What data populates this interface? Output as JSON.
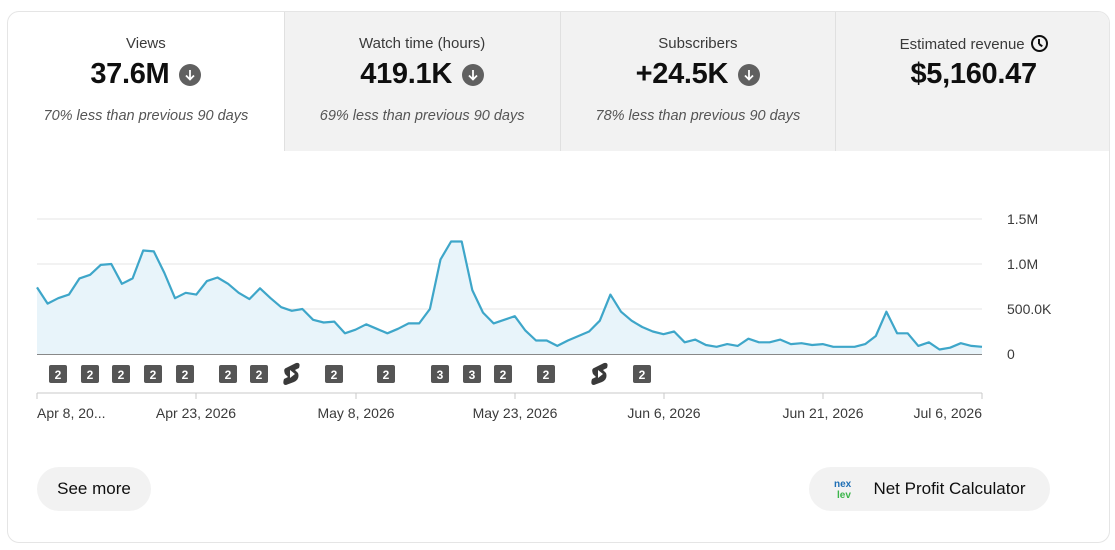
{
  "metrics": [
    {
      "label": "Views",
      "value": "37.6M",
      "comparison": "70% less than previous 90 days",
      "trend_icon": "arrow-down-circle-icon"
    },
    {
      "label": "Watch time (hours)",
      "value": "419.1K",
      "comparison": "69% less than previous 90 days",
      "trend_icon": "arrow-down-circle-icon"
    },
    {
      "label": "Subscribers",
      "value": "+24.5K",
      "comparison": "78% less than previous 90 days",
      "trend_icon": "arrow-down-circle-icon"
    },
    {
      "label": "Estimated revenue",
      "value": "$5,160.47",
      "label_icon": "clock-icon"
    }
  ],
  "chart_data": {
    "type": "area",
    "series": [
      {
        "values": [
          740000,
          560000,
          620000,
          660000,
          840000,
          880000,
          990000,
          1000000,
          780000,
          840000,
          1150000,
          1140000,
          900000,
          620000,
          680000,
          660000,
          810000,
          850000,
          780000,
          680000,
          610000,
          730000,
          620000,
          520000,
          480000,
          500000,
          380000,
          350000,
          360000,
          230000,
          270000,
          330000,
          280000,
          230000,
          280000,
          340000,
          340000,
          500000,
          1050000,
          1250000,
          1250000,
          710000,
          460000,
          340000,
          380000,
          420000,
          260000,
          150000,
          150000,
          90000,
          150000,
          200000,
          250000,
          370000,
          660000,
          470000,
          370000,
          300000,
          250000,
          220000,
          250000,
          130000,
          160000,
          100000,
          80000,
          110000,
          90000,
          170000,
          130000,
          130000,
          160000,
          110000,
          120000,
          100000,
          110000,
          80000,
          80000,
          80000,
          110000,
          200000,
          470000,
          230000,
          230000,
          90000,
          130000,
          50000,
          70000,
          120000,
          90000,
          80000
        ]
      }
    ],
    "x_tick_labels": [
      "Apr 8, 20...",
      "Apr 23, 2026",
      "May 8, 2026",
      "May 23, 2026",
      "Jun 6, 2026",
      "Jun 21, 2026",
      "Jul 6, 2026"
    ],
    "y_tick_labels": [
      "1.5M",
      "1.0M",
      "500.0K",
      "0"
    ],
    "y_ticks": [
      1500000,
      1000000,
      500000,
      0
    ],
    "ylim": [
      0,
      1500000
    ],
    "color": "#3ea6c9",
    "fill_color": "#e8f4fa",
    "markers": [
      {
        "text": "2"
      },
      {
        "text": "2"
      },
      {
        "text": "2"
      },
      {
        "text": "2"
      },
      {
        "text": "2"
      },
      {
        "text": "2"
      },
      {
        "text": "2"
      },
      {
        "icon": "shorts-icon"
      },
      {
        "text": "2"
      },
      {
        "text": "2"
      },
      {
        "text": "3"
      },
      {
        "text": "3"
      },
      {
        "text": "2"
      },
      {
        "text": "2"
      },
      {
        "icon": "shorts-icon"
      },
      {
        "text": "2"
      }
    ]
  },
  "buttons": {
    "see_more": "See more",
    "net_profit": "Net Profit Calculator",
    "net_profit_icon": "nexlev-logo-icon"
  }
}
